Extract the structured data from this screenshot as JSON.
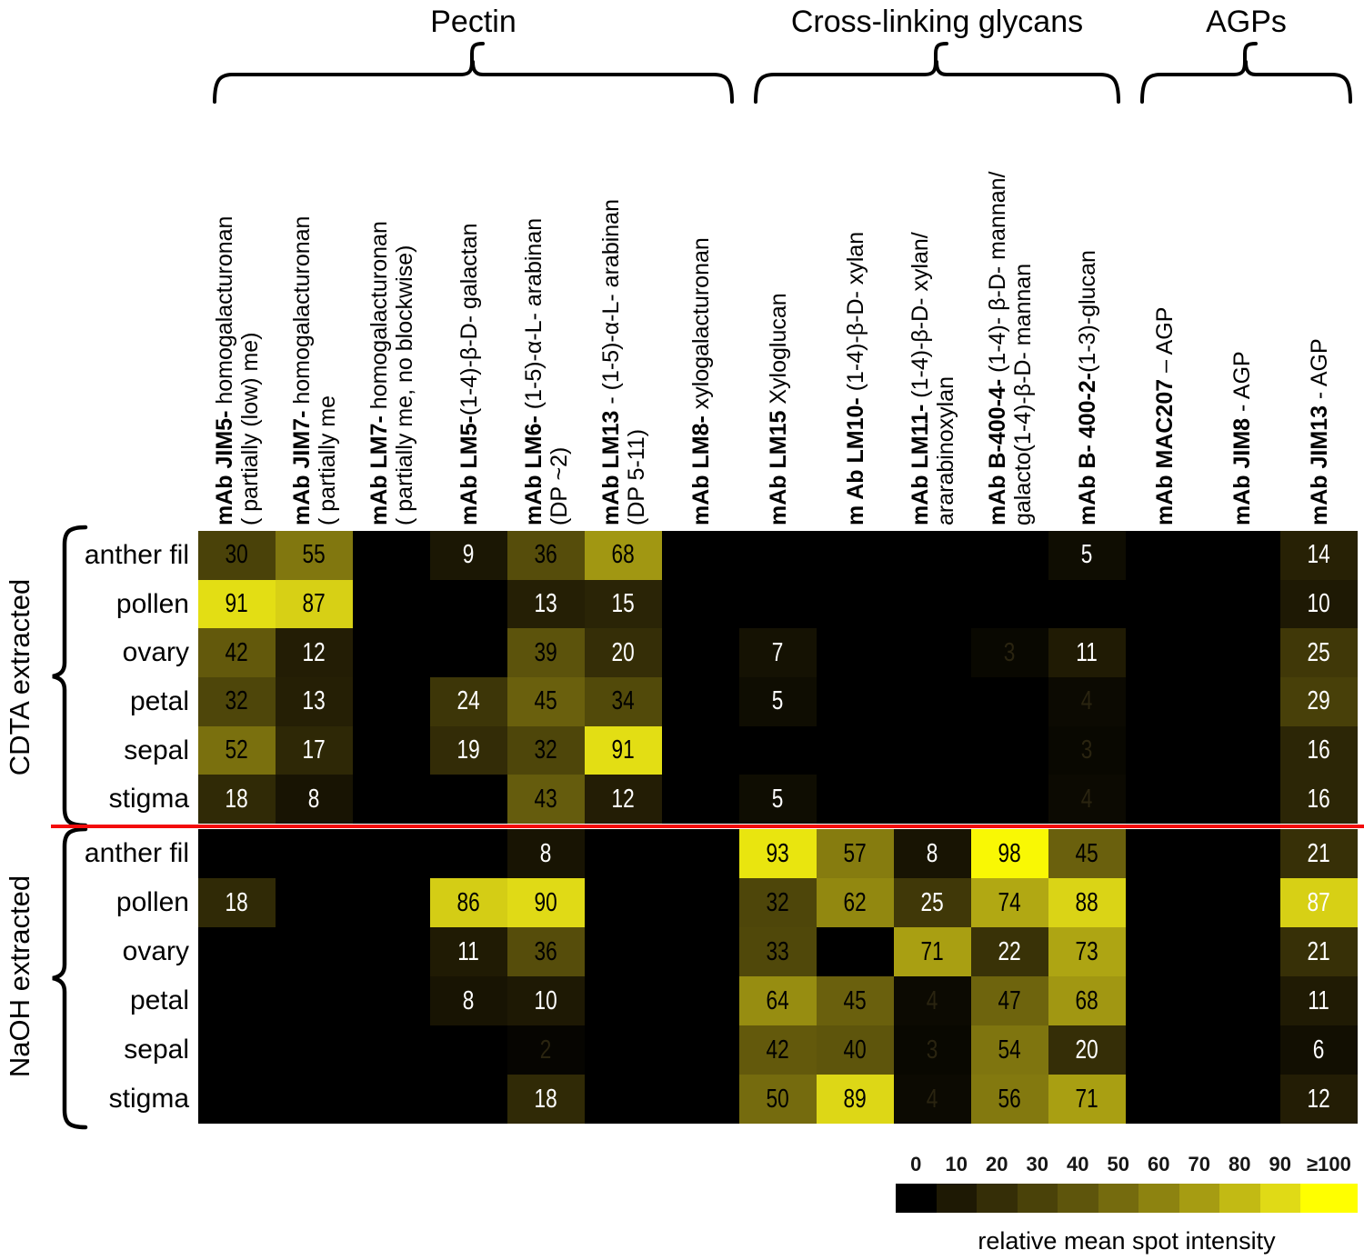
{
  "figure": {
    "background": "#ffffff",
    "divider_color": "#f40b0b"
  },
  "chart_data": {
    "type": "heatmap",
    "column_groups": [
      {
        "label": "Pectin",
        "col_start": 0,
        "col_end": 6
      },
      {
        "label": "Cross-linking glycans",
        "col_start": 7,
        "col_end": 11
      },
      {
        "label": "AGPs",
        "col_start": 12,
        "col_end": 14
      }
    ],
    "columns": [
      {
        "id": "jim5",
        "bold": "mAb JIM5-",
        "rest": " homogalacturonan",
        "line2": "( partially (low) me)"
      },
      {
        "id": "jim7",
        "bold": "mAb JIM7-",
        "rest": " homogalacturonan",
        "line2": "( partially me"
      },
      {
        "id": "lm7",
        "bold": "mAb LM7-",
        "rest": " homogalacturonan",
        "line2": "( partially me, no blockwise)"
      },
      {
        "id": "lm5",
        "bold": "mAb LM5-",
        "rest": "(1-4)-β-D- galactan",
        "line2": ""
      },
      {
        "id": "lm6",
        "bold": "mAb LM6-",
        "rest": " (1-5)-α-L- arabinan",
        "line2": "(DP ~2)"
      },
      {
        "id": "lm13",
        "bold": "mAb LM13",
        "rest": " - (1-5)-α-L- arabinan",
        "line2": "(DP 5-11)"
      },
      {
        "id": "lm8",
        "bold": "mAb LM8-",
        "rest": " xylogalacturonan",
        "line2": ""
      },
      {
        "id": "lm15",
        "bold": "mAb LM15",
        "rest": "  Xyloglucan",
        "line2": ""
      },
      {
        "id": "lm10",
        "bold": "m Ab LM10-",
        "rest": " (1-4)-β-D- xylan",
        "line2": ""
      },
      {
        "id": "lm11",
        "bold": "mAb LM11-",
        "rest": " (1-4)-β-D- xylan/",
        "line2": "ararabinoxylan"
      },
      {
        "id": "b-400-4",
        "bold": "mAb B-400-4-",
        "rest": " (1-4)- β-D- mannan/",
        "line2": "galacto(1-4)-β-D- mannan"
      },
      {
        "id": "b-400-2",
        "bold": "mAb B- 400-2-",
        "rest": "(1-3)-glucan",
        "line2": ""
      },
      {
        "id": "mac207",
        "bold": "mAb MAC207",
        "rest": " – AGP",
        "line2": ""
      },
      {
        "id": "jim8",
        "bold": "mAb JIM8",
        "rest": " - AGP",
        "line2": ""
      },
      {
        "id": "jim13",
        "bold": "mAb JIM13",
        "rest": " - AGP",
        "line2": ""
      }
    ],
    "row_sections": [
      {
        "label": "CDTA extracted",
        "rows": [
          "anther fil",
          "pollen",
          "ovary",
          "petal",
          "sepal",
          "stigma"
        ],
        "values": [
          [
            30,
            55,
            null,
            9,
            36,
            68,
            null,
            null,
            null,
            null,
            null,
            5,
            null,
            null,
            14
          ],
          [
            91,
            87,
            null,
            null,
            13,
            15,
            null,
            null,
            null,
            null,
            null,
            null,
            null,
            null,
            10
          ],
          [
            42,
            12,
            null,
            null,
            39,
            20,
            null,
            7,
            null,
            null,
            3,
            11,
            null,
            null,
            25
          ],
          [
            32,
            13,
            null,
            24,
            45,
            34,
            null,
            5,
            null,
            null,
            null,
            4,
            null,
            null,
            29
          ],
          [
            52,
            17,
            null,
            19,
            32,
            91,
            null,
            null,
            null,
            null,
            null,
            3,
            null,
            null,
            16
          ],
          [
            18,
            8,
            null,
            null,
            43,
            12,
            null,
            5,
            null,
            null,
            null,
            4,
            null,
            null,
            16
          ]
        ]
      },
      {
        "label": "NaOH extracted",
        "rows": [
          "anther fil",
          "pollen",
          "ovary",
          "petal",
          "sepal",
          "stigma"
        ],
        "values": [
          [
            null,
            null,
            null,
            null,
            8,
            null,
            null,
            93,
            57,
            8,
            98,
            45,
            null,
            null,
            21
          ],
          [
            18,
            null,
            null,
            86,
            90,
            null,
            null,
            32,
            62,
            25,
            74,
            88,
            null,
            null,
            87
          ],
          [
            null,
            null,
            null,
            11,
            36,
            null,
            null,
            33,
            null,
            71,
            22,
            73,
            null,
            null,
            21
          ],
          [
            null,
            null,
            null,
            8,
            10,
            null,
            null,
            64,
            45,
            4,
            47,
            68,
            null,
            null,
            11
          ],
          [
            null,
            null,
            null,
            null,
            2,
            null,
            null,
            42,
            40,
            3,
            54,
            20,
            null,
            null,
            6
          ],
          [
            null,
            null,
            null,
            null,
            18,
            null,
            null,
            50,
            89,
            4,
            56,
            71,
            null,
            null,
            12
          ]
        ]
      }
    ],
    "value_scale": {
      "stops": [
        "#000000",
        "#1e1904",
        "#352e07",
        "#4a4209",
        "#5e550c",
        "#756b0e",
        "#8d8310",
        "#a69c12",
        "#c2ba14",
        "#e0da16",
        "#ffff00"
      ],
      "faint_max": 4,
      "faint_text_color": "#2a2410",
      "white_text_below": 30,
      "white_text_exceptions": [
        {
          "section": 1,
          "row": 1,
          "col": 14
        }
      ]
    },
    "legend": {
      "tick_labels": [
        "0",
        "10",
        "20",
        "30",
        "40",
        "50",
        "60",
        "70",
        "80",
        "90",
        "≥100"
      ],
      "caption": "relative mean spot intensity"
    }
  }
}
